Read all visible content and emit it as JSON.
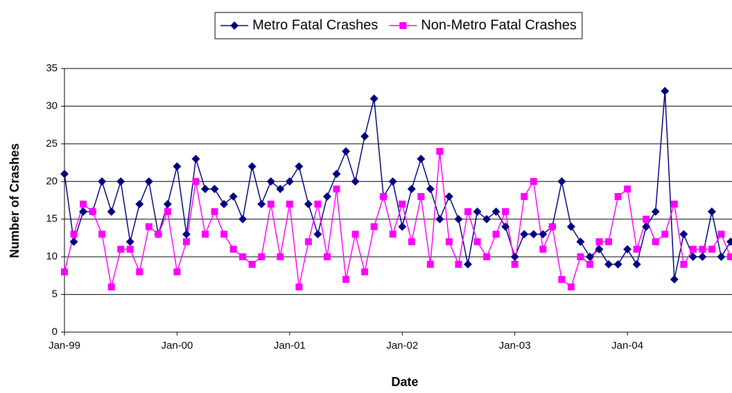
{
  "chart_data": {
    "type": "line",
    "x_label": "Date",
    "y_label": "Number of Crashes",
    "x": [
      "1999-01",
      "1999-02",
      "1999-03",
      "1999-04",
      "1999-05",
      "1999-06",
      "1999-07",
      "1999-08",
      "1999-09",
      "1999-10",
      "1999-11",
      "1999-12",
      "2000-01",
      "2000-02",
      "2000-03",
      "2000-04",
      "2000-05",
      "2000-06",
      "2000-07",
      "2000-08",
      "2000-09",
      "2000-10",
      "2000-11",
      "2000-12",
      "2001-01",
      "2001-02",
      "2001-03",
      "2001-04",
      "2001-05",
      "2001-06",
      "2001-07",
      "2001-08",
      "2001-09",
      "2001-10",
      "2001-11",
      "2001-12",
      "2002-01",
      "2002-02",
      "2002-03",
      "2002-04",
      "2002-05",
      "2002-06",
      "2002-07",
      "2002-08",
      "2002-09",
      "2002-10",
      "2002-11",
      "2002-12",
      "2003-01",
      "2003-02",
      "2003-03",
      "2003-04",
      "2003-05",
      "2003-06",
      "2003-07",
      "2003-08",
      "2003-09",
      "2003-10",
      "2003-11",
      "2003-12",
      "2004-01",
      "2004-02",
      "2004-03",
      "2004-04",
      "2004-05",
      "2004-06",
      "2004-07",
      "2004-08",
      "2004-09",
      "2004-10",
      "2004-11",
      "2004-12"
    ],
    "series": [
      {
        "name": "Metro Fatal Crashes",
        "color": "#000080",
        "marker": "diamond",
        "values": [
          21,
          12,
          16,
          16,
          20,
          16,
          20,
          12,
          17,
          20,
          13,
          17,
          22,
          13,
          23,
          19,
          19,
          17,
          18,
          15,
          22,
          17,
          20,
          19,
          20,
          22,
          17,
          13,
          18,
          21,
          24,
          20,
          26,
          31,
          18,
          20,
          14,
          19,
          23,
          19,
          15,
          18,
          15,
          9,
          16,
          15,
          16,
          14,
          10,
          13,
          13,
          13,
          14,
          20,
          14,
          12,
          10,
          11,
          9,
          9,
          11,
          9,
          14,
          16,
          32,
          7,
          13,
          10,
          10,
          16,
          10,
          12
        ]
      },
      {
        "name": "Non-Metro Fatal Crashes",
        "color": "#ff00ff",
        "marker": "square",
        "values": [
          8,
          13,
          17,
          16,
          13,
          6,
          11,
          11,
          8,
          14,
          13,
          16,
          8,
          12,
          20,
          13,
          16,
          13,
          11,
          10,
          9,
          10,
          17,
          10,
          17,
          6,
          12,
          17,
          10,
          19,
          7,
          13,
          8,
          14,
          18,
          13,
          17,
          12,
          18,
          9,
          24,
          12,
          9,
          16,
          12,
          10,
          13,
          16,
          9,
          18,
          20,
          11,
          14,
          7,
          6,
          10,
          9,
          12,
          12,
          18,
          19,
          11,
          15,
          12,
          13,
          17,
          9,
          11,
          11,
          11,
          13,
          10
        ]
      }
    ],
    "xlim": [
      "1999-01",
      "2004-12"
    ],
    "xticks": [
      {
        "value": "1999-01",
        "label": "Jan-99"
      },
      {
        "value": "2000-01",
        "label": "Jan-00"
      },
      {
        "value": "2001-01",
        "label": "Jan-01"
      },
      {
        "value": "2002-01",
        "label": "Jan-02"
      },
      {
        "value": "2003-01",
        "label": "Jan-03"
      },
      {
        "value": "2004-01",
        "label": "Jan-04"
      }
    ],
    "ylim": [
      0,
      35
    ],
    "yticks": [
      0,
      5,
      10,
      15,
      20,
      25,
      30,
      35
    ],
    "grid": true,
    "legend": "top"
  }
}
